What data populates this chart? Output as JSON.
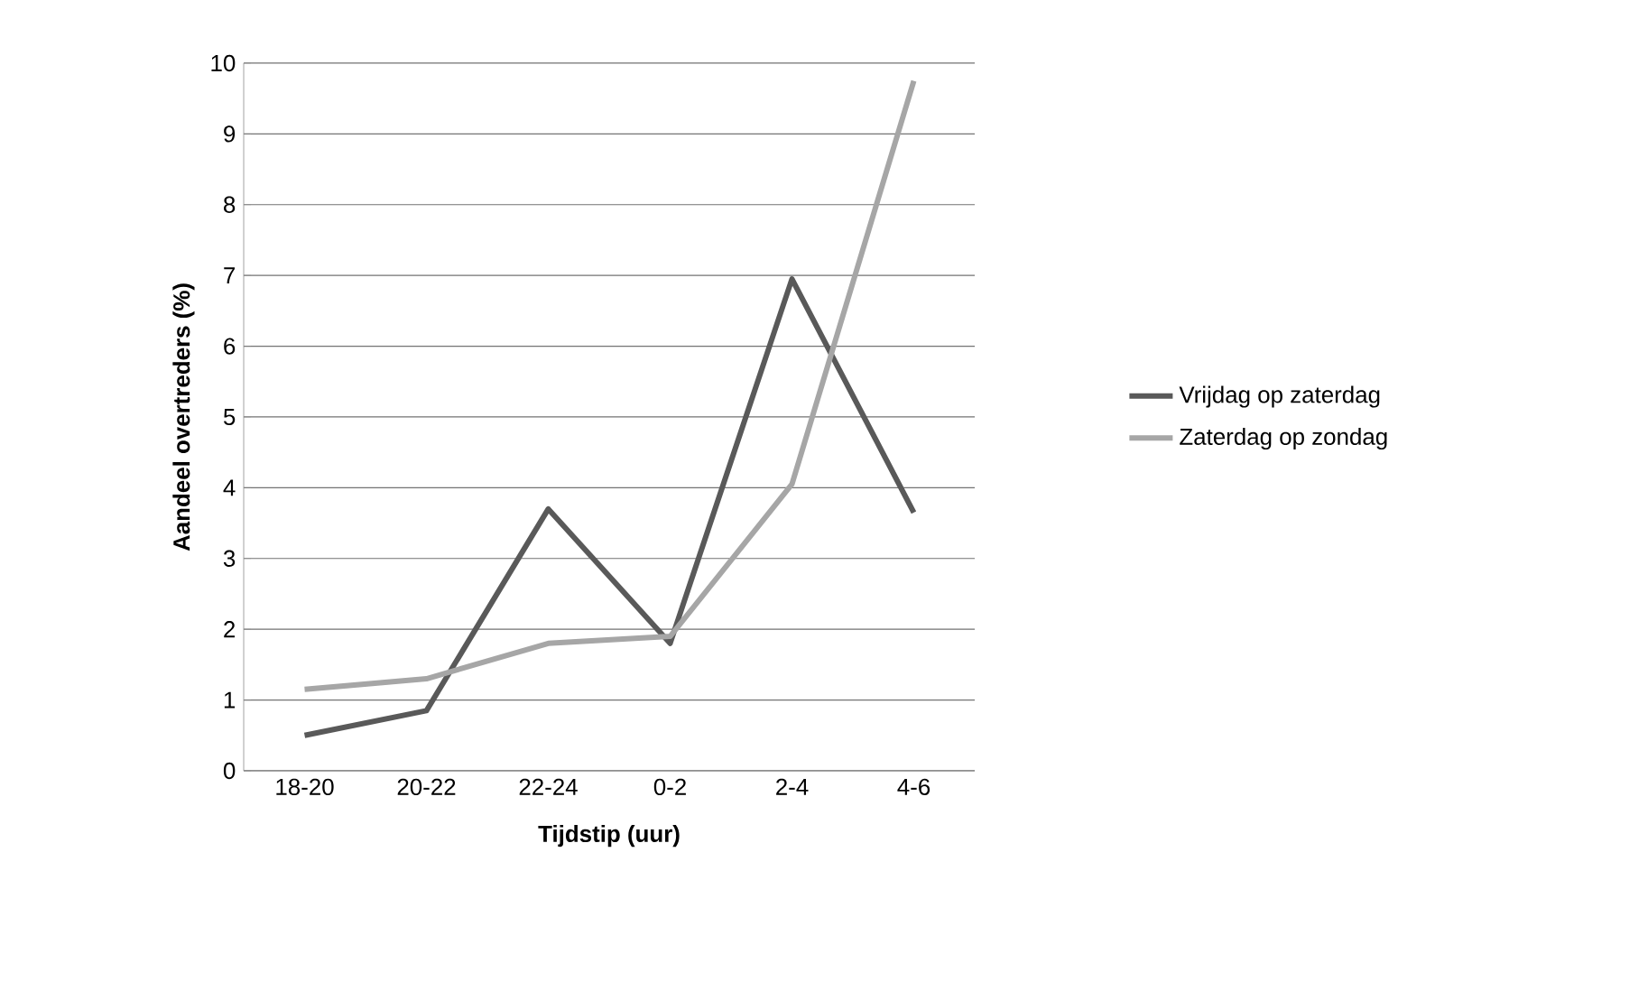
{
  "chart_data": {
    "type": "line",
    "xlabel": "Tijdstip (uur)",
    "ylabel": "Aandeel overtreders (%)",
    "categories": [
      "18-20",
      "20-22",
      "22-24",
      "0-2",
      "2-4",
      "4-6"
    ],
    "series": [
      {
        "name": "Vrijdag op zaterdag",
        "color": "#595959",
        "values": [
          0.5,
          0.85,
          3.7,
          1.8,
          6.95,
          3.65
        ]
      },
      {
        "name": "Zaterdag op zondag",
        "color": "#a6a6a6",
        "values": [
          1.15,
          1.3,
          1.8,
          1.9,
          4.05,
          9.75
        ]
      }
    ],
    "ylim": [
      0,
      10
    ],
    "yticks": [
      0,
      1,
      2,
      3,
      4,
      5,
      6,
      7,
      8,
      9,
      10
    ],
    "grid": "y",
    "legend": "right",
    "marker": "none",
    "line_style": "solid"
  }
}
